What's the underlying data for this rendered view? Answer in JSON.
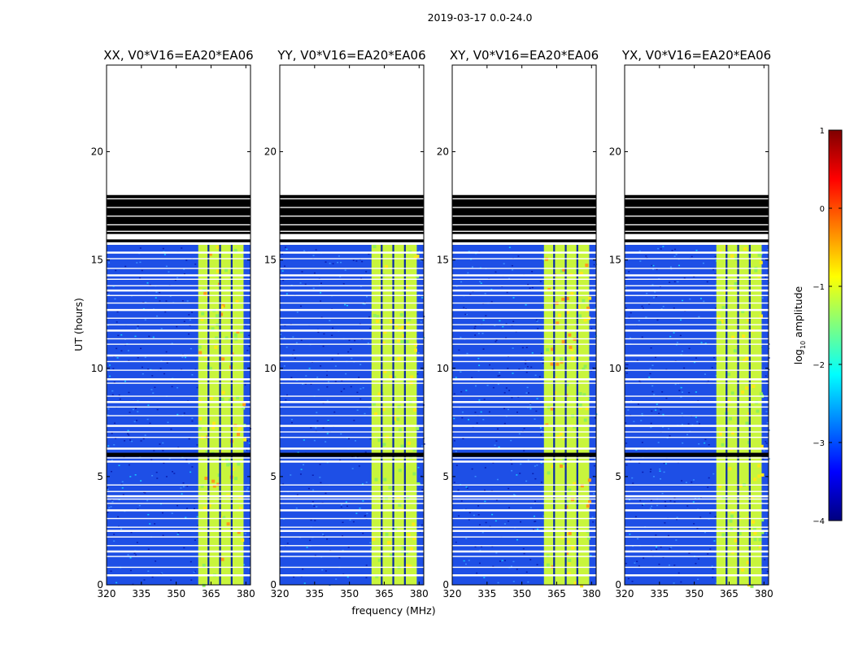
{
  "figure_title": "2019-03-17 0.0-24.0",
  "chart_data": {
    "type": "heatmap",
    "suptitle": "2019-03-17 0.0-24.0",
    "xlabel": "frequency (MHz)",
    "ylabel": "UT (hours)",
    "xlim": [
      320,
      382
    ],
    "ylim": [
      0,
      24
    ],
    "xticks": [
      320,
      335,
      350,
      365,
      380
    ],
    "yticks": [
      0,
      5,
      10,
      15,
      20
    ],
    "colorbar": {
      "label": "log10 amplitude",
      "range": [
        -4,
        1
      ],
      "ticks": [
        1,
        0,
        -1,
        -2,
        -3,
        -4
      ],
      "colormap": "jet"
    },
    "panels": [
      {
        "title": "XX, V0*V16=EA20*EA06",
        "band_mhz": [
          359.5,
          379
        ],
        "data_ends_ut": 15.7,
        "saturated_ut": [
          16.2,
          18.0
        ]
      },
      {
        "title": "YY, V0*V16=EA20*EA06",
        "band_mhz": [
          359.5,
          379
        ],
        "data_ends_ut": 15.7,
        "saturated_ut": [
          16.2,
          18.0
        ]
      },
      {
        "title": "XY, V0*V16=EA20*EA06",
        "band_mhz": [
          359.5,
          379
        ],
        "data_ends_ut": 15.7,
        "saturated_ut": [
          16.2,
          18.0
        ]
      },
      {
        "title": "YX, V0*V16=EA20*EA06",
        "band_mhz": [
          359.5,
          379
        ],
        "data_ends_ut": 15.7,
        "saturated_ut": [
          16.2,
          18.0
        ]
      }
    ],
    "gaps_ut": [
      0.45,
      0.8,
      1.3,
      1.55,
      1.8,
      2.2,
      2.5,
      2.65,
      3.05,
      3.45,
      3.75,
      3.95,
      4.1,
      4.3,
      4.6,
      5.7,
      5.85,
      6.05,
      6.3,
      6.8,
      7.05,
      7.35,
      7.8,
      8.2,
      8.45,
      8.7,
      9.3,
      9.5,
      9.9,
      10.3,
      10.6,
      11.1,
      11.35,
      11.75,
      12.0,
      12.3,
      12.7,
      13.0,
      13.35,
      13.6,
      13.8,
      14.1,
      14.3,
      14.6,
      15.05,
      15.35
    ]
  }
}
